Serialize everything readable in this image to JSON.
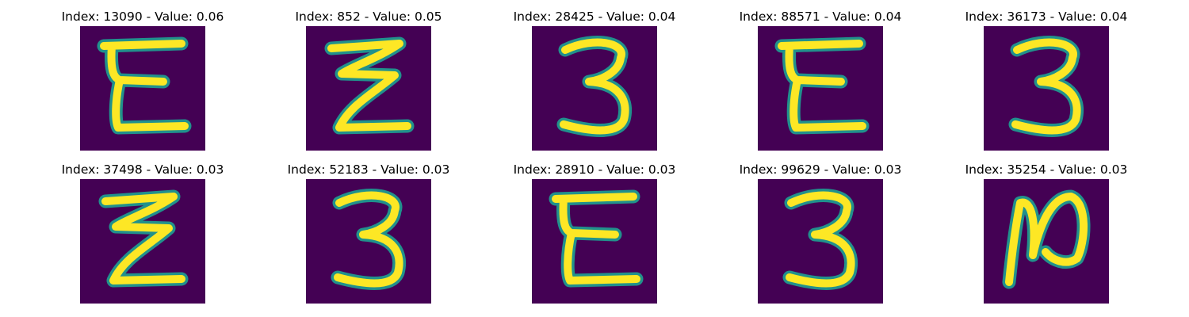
{
  "colors": {
    "background": "#440154",
    "stroke_edge": "#21918c",
    "stroke_core": "#fde725"
  },
  "grid": {
    "rows": 2,
    "cols": 5
  },
  "samples": [
    {
      "title": "Index: 13090 - Value: 0.06",
      "glyph": "E"
    },
    {
      "title": "Index: 852 - Value: 0.05",
      "glyph": "Z"
    },
    {
      "title": "Index: 28425 - Value: 0.04",
      "glyph": "3"
    },
    {
      "title": "Index: 88571 - Value: 0.04",
      "glyph": "E"
    },
    {
      "title": "Index: 36173 - Value: 0.04",
      "glyph": "3"
    },
    {
      "title": "Index: 37498 - Value: 0.03",
      "glyph": "Z"
    },
    {
      "title": "Index: 52183 - Value: 0.03",
      "glyph": "3"
    },
    {
      "title": "Index: 28910 - Value: 0.03",
      "glyph": "E"
    },
    {
      "title": "Index: 99629 - Value: 0.03",
      "glyph": "3"
    },
    {
      "title": "Index: 35254 - Value: 0.03",
      "glyph": "N"
    }
  ]
}
